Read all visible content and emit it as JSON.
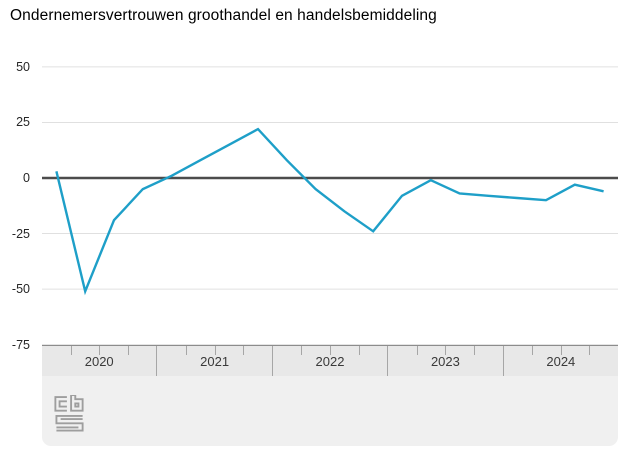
{
  "title": "Ondernemersvertrouwen groothandel en handelsbemiddeling",
  "logo": {
    "label": "cbs"
  },
  "colors": {
    "line": "#1e9fc8",
    "zero_line": "#4c4c4c",
    "gridline": "#e0e0e0",
    "axis_band_bg": "#e8e8e8",
    "axis_band_border": "#8c8c8c",
    "footer_bg": "#f0f0f0",
    "logo_stroke": "#9e9e9e"
  },
  "chart_data": {
    "type": "line",
    "title": "Ondernemersvertrouwen groothandel en handelsbemiddeling",
    "categories_years": [
      "2020",
      "2021",
      "2022",
      "2023",
      "2024"
    ],
    "points_per_year": 4,
    "values": [
      3,
      -51,
      -19,
      -5,
      1,
      8,
      15,
      22,
      8,
      -5,
      -15,
      -24,
      -8,
      -1,
      -7,
      -8,
      -9,
      -10,
      -3,
      -6
    ],
    "yticks": [
      50,
      25,
      0,
      -25,
      -50,
      -75
    ],
    "ylim": [
      -75,
      50
    ],
    "grid": true,
    "zero_line": true,
    "legend": "none"
  }
}
